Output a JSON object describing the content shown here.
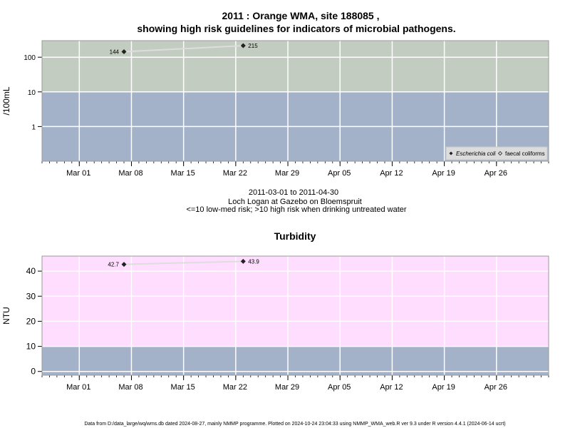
{
  "page": {
    "title_line1": "2011 : Orange WMA, site 188085 ,",
    "title_line2": "showing high risk guidelines for indicators of microbial pathogens.",
    "subtitle_lines": [
      "2011-03-01 to 2011-04-30",
      "Loch Logan at Gazebo on Bloemspruit",
      "<=10 low-med risk; >10 high risk when drinking untreated water"
    ],
    "footer": "Data from D:/data_large/wq/wms.db dated 2024-08-27, mainly NMMP programme. Plotted on 2024-10-24 23:04:33 using NMMP_WMA_web.R ver 9.3 under R version 4.4.1 (2024-06-14 ucrt)"
  },
  "chart_data": [
    {
      "type": "line",
      "title": "",
      "ylabel": "/100mL",
      "xlabel": "",
      "yscale": "log",
      "xlim": [
        "2011-02-24",
        "2011-05-03"
      ],
      "ylim": [
        0.1,
        300
      ],
      "x_ticks": [
        "2011-03-01",
        "2011-03-08",
        "2011-03-15",
        "2011-03-22",
        "2011-03-29",
        "2011-04-05",
        "2011-04-12",
        "2011-04-19",
        "2011-04-26"
      ],
      "x_tick_labels": [
        "Mar 01",
        "Mar 08",
        "Mar 15",
        "Mar 22",
        "Mar 29",
        "Apr 05",
        "Apr 12",
        "Apr 19",
        "Apr 26"
      ],
      "y_ticks": [
        1,
        10,
        100
      ],
      "y_tick_labels": [
        "1",
        "10",
        "100"
      ],
      "threshold": 10,
      "colors": {
        "low": "#a3b2c9",
        "high": "#c3ccc1",
        "line": "#dddddd",
        "marker": "#222222"
      },
      "grid": true,
      "legend": {
        "placement": "bottom-right",
        "entries": [
          {
            "label": "Escherichia coli",
            "marker": "filled-diamond",
            "italic": true
          },
          {
            "label": "faecal coliforms",
            "marker": "open-diamond",
            "italic": false
          }
        ]
      },
      "series": [
        {
          "name": "Escherichia coli",
          "x": [
            "2011-03-07",
            "2011-03-23"
          ],
          "y": [
            144,
            215
          ],
          "labels": [
            "144",
            "215"
          ]
        }
      ]
    },
    {
      "type": "line",
      "title": "Turbidity",
      "ylabel": "NTU",
      "xlabel": "",
      "yscale": "linear",
      "xlim": [
        "2011-02-24",
        "2011-05-03"
      ],
      "ylim": [
        -1.5,
        46
      ],
      "x_ticks": [
        "2011-03-01",
        "2011-03-08",
        "2011-03-15",
        "2011-03-22",
        "2011-03-29",
        "2011-04-05",
        "2011-04-12",
        "2011-04-19",
        "2011-04-26"
      ],
      "x_tick_labels": [
        "Mar 01",
        "Mar 08",
        "Mar 15",
        "Mar 22",
        "Mar 29",
        "Apr 05",
        "Apr 12",
        "Apr 19",
        "Apr 26"
      ],
      "y_ticks": [
        0,
        10,
        20,
        30,
        40
      ],
      "y_tick_labels": [
        "0",
        "10",
        "20",
        "30",
        "40"
      ],
      "threshold": 10,
      "colors": {
        "low": "#a3b2c9",
        "high": "#ffddff",
        "line": "#dddddd",
        "marker": "#222222"
      },
      "grid": true,
      "series": [
        {
          "name": "",
          "x": [
            "2011-03-07",
            "2011-03-23"
          ],
          "y": [
            42.7,
            43.9
          ],
          "labels": [
            "42.7",
            "43.9"
          ]
        }
      ]
    }
  ]
}
